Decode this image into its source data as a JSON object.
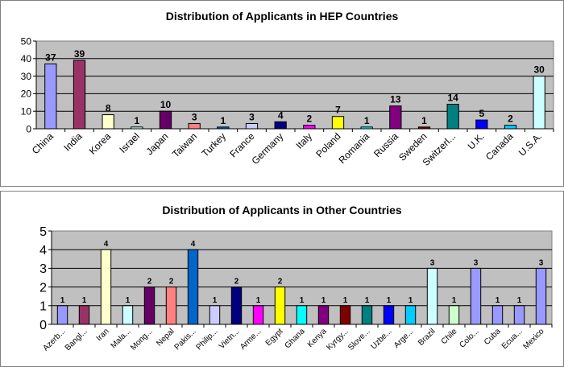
{
  "chart_data": [
    {
      "type": "bar",
      "title": "Distribution of Applicants in HEP Countries",
      "categories": [
        "China",
        "India",
        "Korea",
        "Israel",
        "Japan",
        "Taiwan",
        "Turkey",
        "France",
        "Germany",
        "Italy",
        "Poland",
        "Romania",
        "Russia",
        "Sweden",
        "Switzerl...",
        "U.K.",
        "Canada",
        "U.S.A."
      ],
      "values": [
        37,
        39,
        8,
        1,
        10,
        3,
        1,
        3,
        4,
        2,
        7,
        1,
        13,
        1,
        14,
        5,
        2,
        30
      ],
      "colors": [
        "#9999ff",
        "#993366",
        "#ffffcc",
        "#ccffff",
        "#660066",
        "#ff8080",
        "#0066cc",
        "#ccccff",
        "#000080",
        "#ff00ff",
        "#ffff00",
        "#00ffff",
        "#800080",
        "#800000",
        "#008080",
        "#0000ff",
        "#00ccff",
        "#ccffff"
      ],
      "yticks": [
        0,
        10,
        20,
        30,
        40,
        50
      ],
      "ylim": [
        0,
        50
      ],
      "plot_background": "#c0c0c0",
      "grid": true,
      "legend": "none"
    },
    {
      "type": "bar",
      "title": "Distribution of Applicants in Other Countries",
      "categories": [
        "Azerb...",
        "Bangl...",
        "Iran",
        "Mala...",
        "Mong...",
        "Nepal",
        "Pakis...",
        "Philip...",
        "Vietn...",
        "Arme...",
        "Egypt",
        "Ghana",
        "Kenya",
        "Kyrgy...",
        "Slove...",
        "Uzbe...",
        "Arge...",
        "Brazil",
        "Chile",
        "Colo...",
        "Cuba",
        "Ecua...",
        "Mexico"
      ],
      "values": [
        1,
        1,
        4,
        1,
        2,
        2,
        4,
        1,
        2,
        1,
        2,
        1,
        1,
        1,
        1,
        1,
        1,
        3,
        1,
        3,
        1,
        1,
        3
      ],
      "colors": [
        "#9999ff",
        "#993366",
        "#ffffcc",
        "#ccffff",
        "#660066",
        "#ff8080",
        "#0066cc",
        "#ccccff",
        "#000080",
        "#ff00ff",
        "#ffff00",
        "#00ffff",
        "#800080",
        "#800000",
        "#008080",
        "#0000ff",
        "#00ccff",
        "#ccffff",
        "#ccffcc",
        "#9999ff",
        "#9999ff",
        "#9999ff",
        "#9999ff"
      ],
      "yticks": [
        0,
        1,
        2,
        3,
        4,
        5
      ],
      "ylim": [
        0,
        5
      ],
      "plot_background": "#c0c0c0",
      "grid": true,
      "legend": "none"
    }
  ]
}
